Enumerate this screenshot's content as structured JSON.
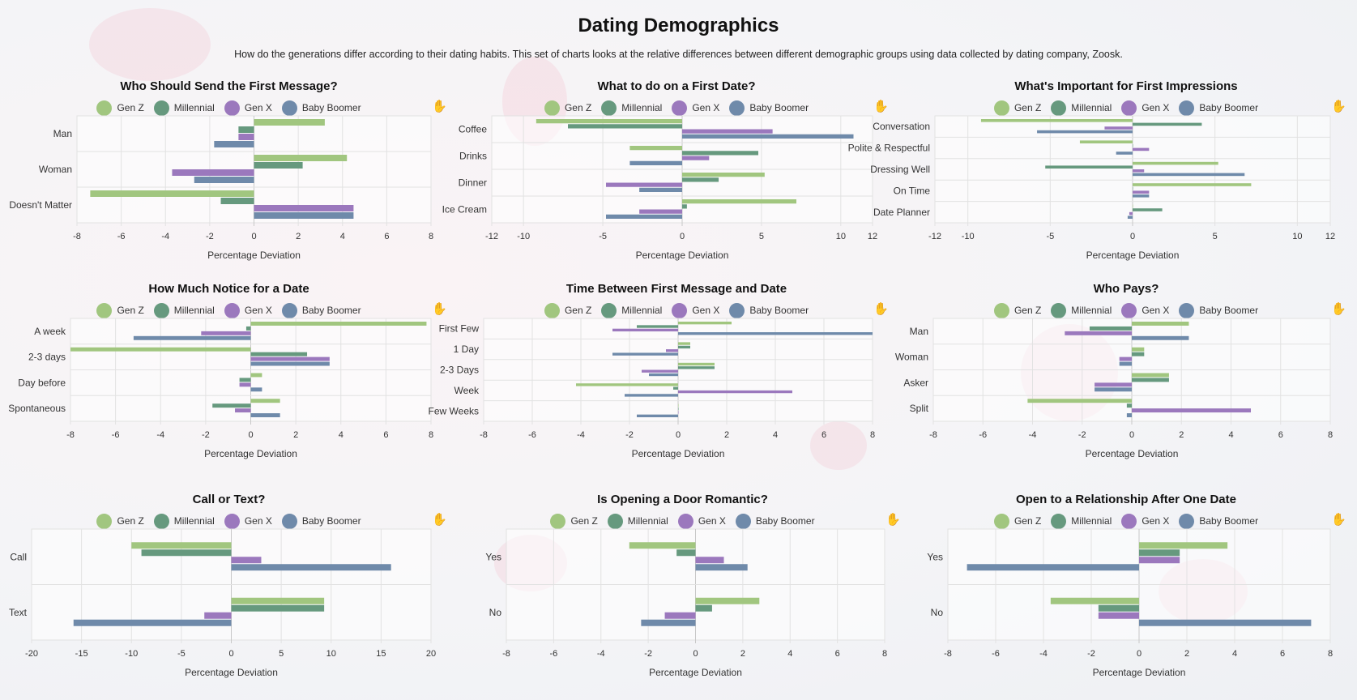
{
  "header": {
    "title": "Dating Demographics",
    "subtitle": "How do the generations differ according to their dating habits. This set of charts looks at the relative differences between different demographic groups using data collected by dating company, Zoosk."
  },
  "legend_labels": [
    "Gen Z",
    "Millennial",
    "Gen X",
    "Baby Boomer"
  ],
  "series_colors": [
    "#a1c67f",
    "#66997e",
    "#9b78bd",
    "#6f8aaa"
  ],
  "toolbar_icon": "hand-icon",
  "chart_data": [
    {
      "type": "bar",
      "title": "Who Should Send the First Message?",
      "xlabel": "Percentage Deviation",
      "xlim": [
        -8,
        8
      ],
      "ticks": [
        -8,
        -6,
        -4,
        -2,
        0,
        2,
        4,
        6,
        8
      ],
      "categories": [
        "Man",
        "Woman",
        "Doesn't Matter"
      ],
      "series": [
        {
          "name": "Gen Z",
          "values": [
            3.2,
            4.2,
            -7.4
          ]
        },
        {
          "name": "Millennial",
          "values": [
            -0.7,
            2.2,
            -1.5
          ]
        },
        {
          "name": "Gen X",
          "values": [
            -0.7,
            -3.7,
            4.5
          ]
        },
        {
          "name": "Baby Boomer",
          "values": [
            -1.8,
            -2.7,
            4.5
          ]
        }
      ]
    },
    {
      "type": "bar",
      "title": "What to do on a First Date?",
      "xlabel": "Percentage Deviation",
      "xlim": [
        -12,
        12
      ],
      "ticks": [
        -12,
        -10,
        -5,
        0,
        5,
        10,
        12
      ],
      "categories": [
        "Coffee",
        "Drinks",
        "Dinner",
        "Ice Cream"
      ],
      "series": [
        {
          "name": "Gen Z",
          "values": [
            -9.2,
            -3.3,
            5.2,
            7.2
          ]
        },
        {
          "name": "Millennial",
          "values": [
            -7.2,
            4.8,
            2.3,
            0.3
          ]
        },
        {
          "name": "Gen X",
          "values": [
            5.7,
            1.7,
            -4.8,
            -2.7
          ]
        },
        {
          "name": "Baby Boomer",
          "values": [
            10.8,
            -3.3,
            -2.7,
            -4.8
          ]
        }
      ]
    },
    {
      "type": "bar",
      "title": "What's Important for First Impressions",
      "xlabel": "Percentage Deviation",
      "xlim": [
        -12,
        12
      ],
      "ticks": [
        -12,
        -10,
        -5,
        0,
        5,
        10,
        12
      ],
      "categories": [
        "Conversation",
        "Polite & Respectful",
        "Dressing Well",
        "On Time",
        "Date Planner"
      ],
      "series": [
        {
          "name": "Gen Z",
          "values": [
            -9.2,
            -3.2,
            5.2,
            7.2,
            0
          ]
        },
        {
          "name": "Millennial",
          "values": [
            4.2,
            0,
            -5.3,
            0,
            1.8
          ]
        },
        {
          "name": "Gen X",
          "values": [
            -1.7,
            1.0,
            0.7,
            1.0,
            -0.2
          ]
        },
        {
          "name": "Baby Boomer",
          "values": [
            -5.8,
            -1.0,
            6.8,
            1.0,
            -0.3
          ]
        }
      ]
    },
    {
      "type": "bar",
      "title": "How Much Notice for a Date",
      "xlabel": "Percentage Deviation",
      "xlim": [
        -8,
        8
      ],
      "ticks": [
        -8,
        -6,
        -4,
        -2,
        0,
        2,
        4,
        6,
        8
      ],
      "categories": [
        "A week",
        "2-3 days",
        "Day before",
        "Spontaneous"
      ],
      "series": [
        {
          "name": "Gen Z",
          "values": [
            7.8,
            -8.0,
            0.5,
            1.3
          ]
        },
        {
          "name": "Millennial",
          "values": [
            -0.2,
            2.5,
            -0.5,
            -1.7
          ]
        },
        {
          "name": "Gen X",
          "values": [
            -2.2,
            3.5,
            -0.5,
            -0.7
          ]
        },
        {
          "name": "Baby Boomer",
          "values": [
            -5.2,
            3.5,
            0.5,
            1.3
          ]
        }
      ]
    },
    {
      "type": "bar",
      "title": "Time Between First Message and Date",
      "xlabel": "Percentage Deviation",
      "xlim": [
        -8,
        8
      ],
      "ticks": [
        -8,
        -6,
        -4,
        -2,
        0,
        2,
        4,
        6,
        8
      ],
      "categories": [
        "First Few",
        "1 Day",
        "2-3 Days",
        "Week",
        "Few Weeks"
      ],
      "series": [
        {
          "name": "Gen Z",
          "values": [
            2.2,
            0.5,
            1.5,
            -4.2,
            0
          ]
        },
        {
          "name": "Millennial",
          "values": [
            -1.7,
            0.5,
            1.5,
            -0.2,
            0
          ]
        },
        {
          "name": "Gen X",
          "values": [
            -2.7,
            -0.5,
            -1.5,
            4.7,
            0
          ]
        },
        {
          "name": "Baby Boomer",
          "values": [
            8.0,
            -2.7,
            -1.2,
            -2.2,
            -1.7
          ]
        }
      ]
    },
    {
      "type": "bar",
      "title": "Who Pays?",
      "xlabel": "Percentage Deviation",
      "xlim": [
        -8,
        8
      ],
      "ticks": [
        -8,
        -6,
        -4,
        -2,
        0,
        2,
        4,
        6,
        8
      ],
      "categories": [
        "Man",
        "Woman",
        "Asker",
        "Split"
      ],
      "series": [
        {
          "name": "Gen Z",
          "values": [
            2.3,
            0.5,
            1.5,
            -4.2
          ]
        },
        {
          "name": "Millennial",
          "values": [
            -1.7,
            0.5,
            1.5,
            -0.2
          ]
        },
        {
          "name": "Gen X",
          "values": [
            -2.7,
            -0.5,
            -1.5,
            4.8
          ]
        },
        {
          "name": "Baby Boomer",
          "values": [
            2.3,
            -0.5,
            -1.5,
            -0.2
          ]
        }
      ]
    },
    {
      "type": "bar",
      "title": "Call or Text?",
      "xlabel": "Percentage Deviation",
      "xlim": [
        -20,
        20
      ],
      "ticks": [
        -20,
        -15,
        -10,
        -5,
        0,
        5,
        10,
        15,
        20
      ],
      "categories": [
        "Call",
        "Text"
      ],
      "series": [
        {
          "name": "Gen Z",
          "values": [
            -10.0,
            9.3
          ]
        },
        {
          "name": "Millennial",
          "values": [
            -9.0,
            9.3
          ]
        },
        {
          "name": "Gen X",
          "values": [
            3.0,
            -2.7
          ]
        },
        {
          "name": "Baby Boomer",
          "values": [
            16.0,
            -15.8
          ]
        }
      ]
    },
    {
      "type": "bar",
      "title": "Is Opening a Door Romantic?",
      "xlabel": "Percentage Deviation",
      "xlim": [
        -8,
        8
      ],
      "ticks": [
        -8,
        -6,
        -4,
        -2,
        0,
        2,
        4,
        6,
        8
      ],
      "categories": [
        "Yes",
        "No"
      ],
      "series": [
        {
          "name": "Gen Z",
          "values": [
            -2.8,
            2.7
          ]
        },
        {
          "name": "Millennial",
          "values": [
            -0.8,
            0.7
          ]
        },
        {
          "name": "Gen X",
          "values": [
            1.2,
            -1.3
          ]
        },
        {
          "name": "Baby Boomer",
          "values": [
            2.2,
            -2.3
          ]
        }
      ]
    },
    {
      "type": "bar",
      "title": "Open to a Relationship After One Date",
      "xlabel": "Percentage Deviation",
      "xlim": [
        -8,
        8
      ],
      "ticks": [
        -8,
        -6,
        -4,
        -2,
        0,
        2,
        4,
        6,
        8
      ],
      "categories": [
        "Yes",
        "No"
      ],
      "series": [
        {
          "name": "Gen Z",
          "values": [
            3.7,
            -3.7
          ]
        },
        {
          "name": "Millennial",
          "values": [
            1.7,
            -1.7
          ]
        },
        {
          "name": "Gen X",
          "values": [
            1.7,
            -1.7
          ]
        },
        {
          "name": "Baby Boomer",
          "values": [
            -7.2,
            7.2
          ]
        }
      ]
    }
  ]
}
